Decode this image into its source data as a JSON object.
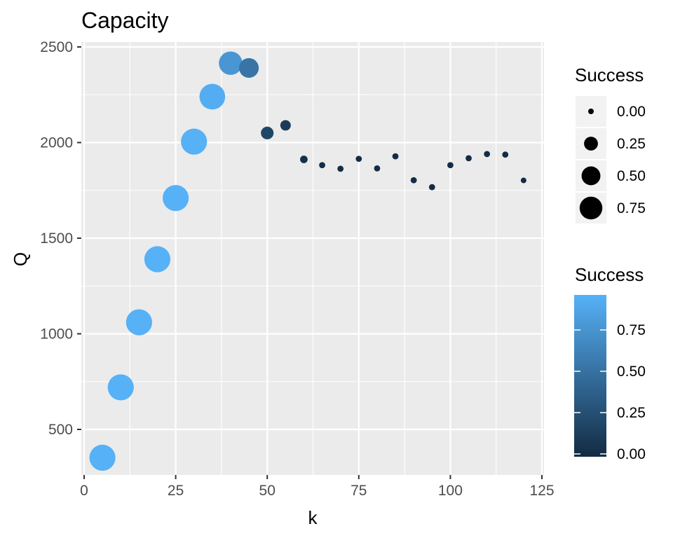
{
  "chart_data": {
    "type": "scatter",
    "title": "Capacity",
    "xlabel": "k",
    "ylabel": "Q",
    "xlim": [
      0,
      125
    ],
    "ylim": [
      250,
      2530
    ],
    "x_ticks": [
      0,
      25,
      50,
      75,
      100,
      125
    ],
    "x_tick_labels": [
      "0",
      "25",
      "50",
      "75",
      "100",
      "125"
    ],
    "y_ticks": [
      500,
      1000,
      1500,
      2000,
      2500
    ],
    "y_tick_labels": [
      "500",
      "1000",
      "1500",
      "2000",
      "2500"
    ],
    "grid": true,
    "legend_position": "right",
    "size_legend": {
      "title": "Success",
      "labels": [
        "0.00",
        "0.25",
        "0.50",
        "0.75"
      ],
      "values": [
        0.0,
        0.25,
        0.5,
        0.75
      ]
    },
    "color_legend": {
      "title": "Success",
      "labels": [
        "0.00",
        "0.25",
        "0.50",
        "0.75"
      ],
      "values": [
        0.0,
        0.25,
        0.5,
        0.75
      ],
      "low_color": "#132B43",
      "high_color": "#56B1F7",
      "range": [
        0.0,
        1.0
      ]
    },
    "points": [
      {
        "k": 5,
        "Q": 352,
        "success": 1.0
      },
      {
        "k": 10,
        "Q": 720,
        "success": 1.0
      },
      {
        "k": 15,
        "Q": 1060,
        "success": 1.0
      },
      {
        "k": 20,
        "Q": 1390,
        "success": 1.0
      },
      {
        "k": 25,
        "Q": 1710,
        "success": 1.0
      },
      {
        "k": 30,
        "Q": 2005,
        "success": 1.0
      },
      {
        "k": 35,
        "Q": 2240,
        "success": 0.97
      },
      {
        "k": 40,
        "Q": 2415,
        "success": 0.8
      },
      {
        "k": 45,
        "Q": 2390,
        "success": 0.55
      },
      {
        "k": 50,
        "Q": 2050,
        "success": 0.2
      },
      {
        "k": 55,
        "Q": 2090,
        "success": 0.12
      },
      {
        "k": 60,
        "Q": 1912,
        "success": 0.04
      },
      {
        "k": 65,
        "Q": 1882,
        "success": 0.01
      },
      {
        "k": 70,
        "Q": 1863,
        "success": 0.01
      },
      {
        "k": 75,
        "Q": 1915,
        "success": 0.01
      },
      {
        "k": 80,
        "Q": 1865,
        "success": 0.01
      },
      {
        "k": 85,
        "Q": 1928,
        "success": 0.01
      },
      {
        "k": 90,
        "Q": 1803,
        "success": 0.01
      },
      {
        "k": 95,
        "Q": 1767,
        "success": 0.01
      },
      {
        "k": 100,
        "Q": 1882,
        "success": 0.01
      },
      {
        "k": 105,
        "Q": 1918,
        "success": 0.01
      },
      {
        "k": 110,
        "Q": 1940,
        "success": 0.01
      },
      {
        "k": 115,
        "Q": 1937,
        "success": 0.01
      },
      {
        "k": 120,
        "Q": 1802,
        "success": 0.0
      }
    ]
  }
}
